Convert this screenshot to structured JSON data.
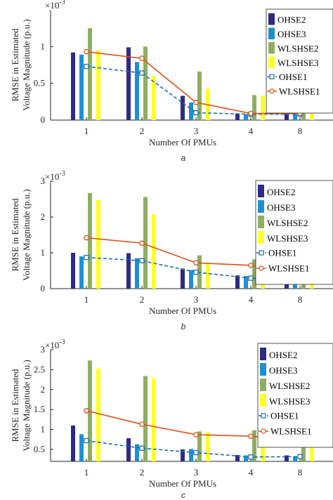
{
  "chart_data": [
    {
      "type": "bar",
      "panel_label": "a",
      "ylabel": "RMSE in Estimated Voltage Magnitude (p.u.)",
      "xlabel": "Number Of PMUs",
      "y_multiplier": "×10",
      "y_exponent": "-3",
      "categories": [
        "1",
        "2",
        "3",
        "4",
        "8"
      ],
      "ylim": [
        0,
        1.5
      ],
      "yticks": [
        "0",
        "0.5",
        "1"
      ],
      "ytick_values": [
        0,
        0.5,
        1
      ],
      "legend_position": "top-right",
      "bar_series": [
        {
          "name": "OHSE2",
          "color": "#2e2a85",
          "values": [
            0.92,
            0.99,
            0.33,
            0.09,
            0.09
          ]
        },
        {
          "name": "OHSE3",
          "color": "#1f8fd1",
          "values": [
            0.89,
            0.79,
            0.24,
            0.08,
            0.08
          ]
        },
        {
          "name": "WLSHSE2",
          "color": "#8fae62",
          "values": [
            1.25,
            1.0,
            0.66,
            0.34,
            0.28
          ]
        },
        {
          "name": "WLSHSE3",
          "color": "#ffff26",
          "values": [
            0.95,
            0.6,
            0.43,
            0.33,
            0.26
          ]
        }
      ],
      "line_series": [
        {
          "name": "OHSE1",
          "color": "#1c6fb0",
          "style": "dashed",
          "marker": "square",
          "values": [
            0.73,
            0.64,
            0.1,
            0.08,
            0.08
          ]
        },
        {
          "name": "WLSHSE1",
          "color": "#d95319",
          "style": "solid",
          "marker": "circle",
          "values": [
            0.93,
            0.84,
            0.24,
            0.09,
            0.09
          ]
        }
      ]
    },
    {
      "type": "bar",
      "panel_label": "b",
      "ylabel": "RMSE in Estimated Voltage Magnitude (p.u.)",
      "xlabel": "Number Of PMUs",
      "y_multiplier": "×10",
      "y_exponent": "-3",
      "categories": [
        "1",
        "2",
        "3",
        "4",
        "8"
      ],
      "ylim": [
        0,
        3
      ],
      "yticks": [
        "0",
        "1",
        "2",
        "3"
      ],
      "ytick_values": [
        0,
        1,
        2,
        3
      ],
      "legend_position": "top-right",
      "bar_series": [
        {
          "name": "OHSE2",
          "color": "#2e2a85",
          "values": [
            1.0,
            0.99,
            0.56,
            0.37,
            0.37
          ]
        },
        {
          "name": "OHSE3",
          "color": "#1f8fd1",
          "values": [
            0.9,
            0.85,
            0.52,
            0.35,
            0.35
          ]
        },
        {
          "name": "WLSHSE2",
          "color": "#8fae62",
          "values": [
            2.67,
            2.56,
            0.93,
            0.82,
            0.52
          ]
        },
        {
          "name": "WLSHSE3",
          "color": "#ffff26",
          "values": [
            2.47,
            2.07,
            0.7,
            0.55,
            0.53
          ]
        }
      ],
      "line_series": [
        {
          "name": "OHSE1",
          "color": "#1c6fb0",
          "style": "dashed",
          "marker": "square",
          "values": [
            0.87,
            0.78,
            0.46,
            0.29,
            0.23
          ]
        },
        {
          "name": "WLSHSE1",
          "color": "#d95319",
          "style": "solid",
          "marker": "circle",
          "values": [
            1.42,
            1.27,
            0.72,
            0.65,
            0.42
          ]
        }
      ]
    },
    {
      "type": "bar",
      "panel_label": "c",
      "ylabel": "RMSE in Estimated Voltage Magnitude (p.u.)",
      "xlabel": "Number Of PMUs",
      "y_multiplier": "×10",
      "y_exponent": "-3",
      "categories": [
        "1",
        "2",
        "3",
        "4",
        "8"
      ],
      "ylim": [
        0.2,
        3
      ],
      "yticks": [
        "0.5",
        "1",
        "1.5",
        "2",
        "2.5",
        "3"
      ],
      "ytick_values": [
        0.5,
        1,
        1.5,
        2,
        2.5,
        3
      ],
      "legend_position": "top-right",
      "bar_series": [
        {
          "name": "OHSE2",
          "color": "#2e2a85",
          "values": [
            1.1,
            0.78,
            0.5,
            0.36,
            0.35
          ]
        },
        {
          "name": "OHSE3",
          "color": "#1f8fd1",
          "values": [
            0.88,
            0.63,
            0.51,
            0.35,
            0.32
          ]
        },
        {
          "name": "WLSHSE2",
          "color": "#8fae62",
          "values": [
            2.73,
            2.34,
            0.95,
            0.98,
            0.78
          ]
        },
        {
          "name": "WLSHSE3",
          "color": "#ffff26",
          "values": [
            2.53,
            2.28,
            0.93,
            0.86,
            0.76
          ]
        }
      ],
      "line_series": [
        {
          "name": "OHSE1",
          "color": "#1c6fb0",
          "style": "dashed",
          "marker": "square",
          "values": [
            0.72,
            0.53,
            0.42,
            0.31,
            0.32
          ]
        },
        {
          "name": "WLSHSE1",
          "color": "#d95319",
          "style": "solid",
          "marker": "circle",
          "values": [
            1.47,
            1.13,
            0.87,
            0.83,
            0.74
          ]
        }
      ]
    }
  ]
}
